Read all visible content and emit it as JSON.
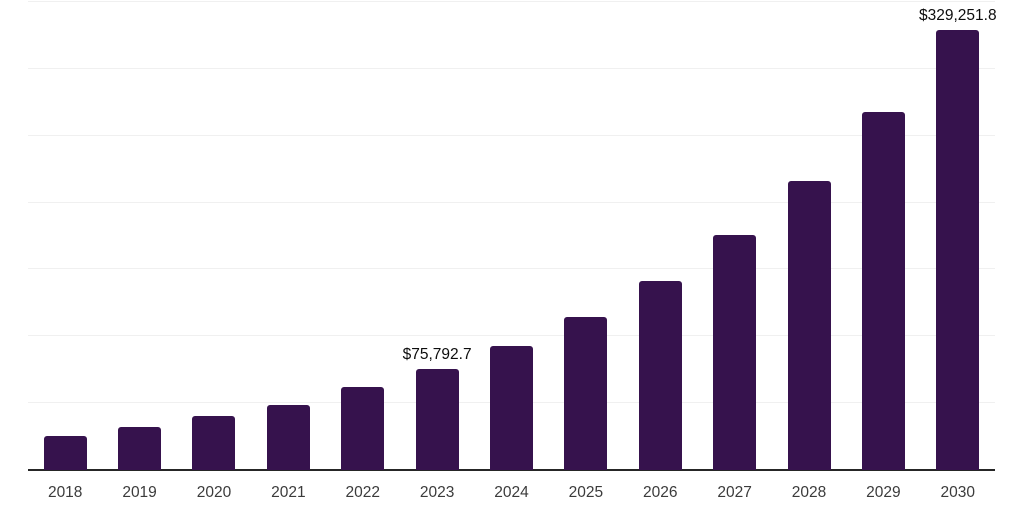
{
  "chart_data": {
    "type": "bar",
    "title": "",
    "xlabel": "",
    "ylabel": "",
    "categories": [
      "2018",
      "2019",
      "2020",
      "2021",
      "2022",
      "2023",
      "2024",
      "2025",
      "2026",
      "2027",
      "2028",
      "2029",
      "2030"
    ],
    "values": [
      25800,
      31800,
      40300,
      48900,
      61800,
      75792.7,
      93000,
      114500,
      141000,
      175400,
      216500,
      267500,
      329251.8
    ],
    "labeled_points": [
      {
        "category": "2023",
        "label": "$75,792.7"
      },
      {
        "category": "2030",
        "label": "$329,251.8"
      }
    ],
    "ylim": [
      0,
      350000
    ],
    "gridline_step": 50000,
    "grid": "horizontal",
    "y_axis_labels_visible": false,
    "legend_position": "none"
  },
  "colors": {
    "bar": "#36124D",
    "gridline": "#f0f0f0",
    "axis_line": "#262626",
    "tick_label": "#3b3b3b",
    "value_label": "#0d0d0d",
    "background": "#ffffff"
  }
}
